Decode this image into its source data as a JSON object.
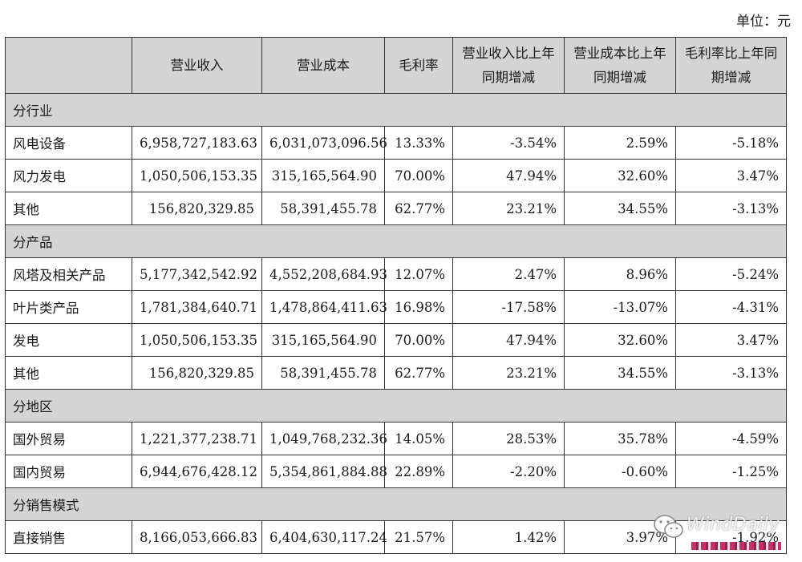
{
  "unit_label": "单位：元",
  "headers": [
    "",
    "营业收入",
    "营业成本",
    "毛利率",
    "营业收入比上年同期增减",
    "营业成本比上年同期增减",
    "毛利率比上年同期增减"
  ],
  "sections": [
    {
      "title": "分行业",
      "rows": [
        [
          "风电设备",
          "6,958,727,183.63",
          "6,031,073,096.56",
          "13.33%",
          "-3.54%",
          "2.59%",
          "-5.18%"
        ],
        [
          "风力发电",
          "1,050,506,153.35",
          "315,165,564.90",
          "70.00%",
          "47.94%",
          "32.60%",
          "3.47%"
        ],
        [
          "其他",
          "156,820,329.85",
          "58,391,455.78",
          "62.77%",
          "23.21%",
          "34.55%",
          "-3.13%"
        ]
      ]
    },
    {
      "title": "分产品",
      "rows": [
        [
          "风塔及相关产品",
          "5,177,342,542.92",
          "4,552,208,684.93",
          "12.07%",
          "2.47%",
          "8.96%",
          "-5.24%"
        ],
        [
          "叶片类产品",
          "1,781,384,640.71",
          "1,478,864,411.63",
          "16.98%",
          "-17.58%",
          "-13.07%",
          "-4.31%"
        ],
        [
          "发电",
          "1,050,506,153.35",
          "315,165,564.90",
          "70.00%",
          "47.94%",
          "32.60%",
          "3.47%"
        ],
        [
          "其他",
          "156,820,329.85",
          "58,391,455.78",
          "62.77%",
          "23.21%",
          "34.55%",
          "-3.13%"
        ]
      ]
    },
    {
      "title": "分地区",
      "rows": [
        [
          "国外贸易",
          "1,221,377,238.71",
          "1,049,768,232.36",
          "14.05%",
          "28.53%",
          "35.78%",
          "-4.59%"
        ],
        [
          "国内贸易",
          "6,944,676,428.12",
          "5,354,861,884.88",
          "22.89%",
          "-2.20%",
          "-0.60%",
          "-1.25%"
        ]
      ]
    },
    {
      "title": "分销售模式",
      "rows": [
        [
          "直接销售",
          "8,166,053,666.83",
          "6,404,630,117.24",
          "21.57%",
          "1.42%",
          "3.97%",
          "-1.92%"
        ]
      ]
    }
  ],
  "watermark": {
    "text": "WindDaily",
    "icon": "wechat-icon"
  }
}
